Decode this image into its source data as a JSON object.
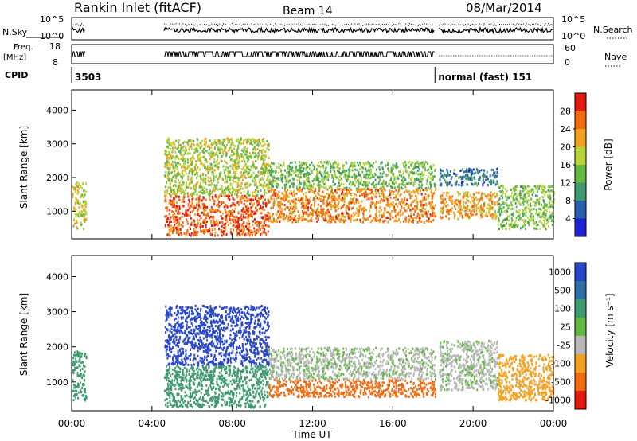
{
  "header": {
    "title": "Rankin Inlet (fitACF)",
    "beam": "Beam 14",
    "date": "08/Mar/2014"
  },
  "sky_panel": {
    "left_label": "N.Sky",
    "right_label": "N.Search",
    "left_ticks": [
      "10^5",
      "10^0"
    ],
    "right_ticks": [
      "10^5",
      "10^0"
    ]
  },
  "freq_panel": {
    "left_label_top": "Freq.",
    "left_label_unit": "[MHz]",
    "right_label": "Nave",
    "left_ticks": [
      "18",
      "8"
    ],
    "right_ticks": [
      "60",
      "0"
    ]
  },
  "cpid": {
    "label": "CPID",
    "segments": [
      {
        "start_hour": 0.0,
        "text": "3503"
      },
      {
        "start_hour": 18.1,
        "text": "normal (fast) 151"
      }
    ]
  },
  "time_axis": {
    "label": "Time UT",
    "ticks": [
      "00:00",
      "04:00",
      "08:00",
      "12:00",
      "16:00",
      "20:00",
      "00:00"
    ],
    "range_hours": [
      0,
      24
    ]
  },
  "chart_data": [
    {
      "type": "heatmap",
      "name": "Power",
      "xlabel": "Time UT",
      "ylabel": "Slant Range [km]",
      "x_range_hours": [
        0,
        24
      ],
      "y_range_km": [
        180,
        4600
      ],
      "yticks": [
        "1000",
        "2000",
        "3000",
        "4000"
      ],
      "colorbar": {
        "label": "Power [dB]",
        "ticks": [
          "4",
          "8",
          "12",
          "16",
          "20",
          "24",
          "28"
        ],
        "range": [
          0,
          32
        ]
      },
      "scatter_bands": [
        {
          "t0": 0.0,
          "t1": 0.7,
          "r0": 500,
          "r1": 1900,
          "value": 18
        },
        {
          "t0": 4.6,
          "t1": 9.8,
          "r0": 300,
          "r1": 1500,
          "value": 27
        },
        {
          "t0": 4.6,
          "t1": 9.8,
          "r0": 1500,
          "r1": 3200,
          "value": 17
        },
        {
          "t0": 9.8,
          "t1": 18.1,
          "r0": 700,
          "r1": 1700,
          "value": 24
        },
        {
          "t0": 9.8,
          "t1": 18.1,
          "r0": 1700,
          "r1": 2500,
          "value": 14
        },
        {
          "t0": 18.3,
          "t1": 21.2,
          "r0": 800,
          "r1": 1600,
          "value": 23
        },
        {
          "t0": 18.3,
          "t1": 21.2,
          "r0": 1800,
          "r1": 2300,
          "value": 8
        },
        {
          "t0": 21.2,
          "t1": 24.0,
          "r0": 500,
          "r1": 1800,
          "value": 15
        }
      ]
    },
    {
      "type": "heatmap",
      "name": "Velocity",
      "xlabel": "Time UT",
      "ylabel": "Slant Range [km]",
      "x_range_hours": [
        0,
        24
      ],
      "y_range_km": [
        180,
        4600
      ],
      "yticks": [
        "1000",
        "2000",
        "3000",
        "4000"
      ],
      "colorbar": {
        "label": "Velocity [m s⁻¹]",
        "ticks": [
          "1000",
          "500",
          "100",
          "25",
          "-25",
          "-100",
          "-500",
          "-1000"
        ]
      },
      "scatter_bands": [
        {
          "t0": 0.0,
          "t1": 0.7,
          "r0": 500,
          "r1": 1900,
          "value": "100"
        },
        {
          "t0": 4.6,
          "t1": 9.8,
          "r0": 1500,
          "r1": 3200,
          "value": "1000"
        },
        {
          "t0": 4.6,
          "t1": 9.8,
          "r0": 300,
          "r1": 1500,
          "value": "100"
        },
        {
          "t0": 9.8,
          "t1": 18.1,
          "r0": 600,
          "r1": 1100,
          "value": "-500"
        },
        {
          "t0": 9.8,
          "t1": 18.1,
          "r0": 1100,
          "r1": 2000,
          "value": "25"
        },
        {
          "t0": 18.3,
          "t1": 21.2,
          "r0": 800,
          "r1": 2200,
          "value": "25"
        },
        {
          "t0": 21.2,
          "t1": 24.0,
          "r0": 500,
          "r1": 1800,
          "value": "-100"
        }
      ]
    }
  ]
}
